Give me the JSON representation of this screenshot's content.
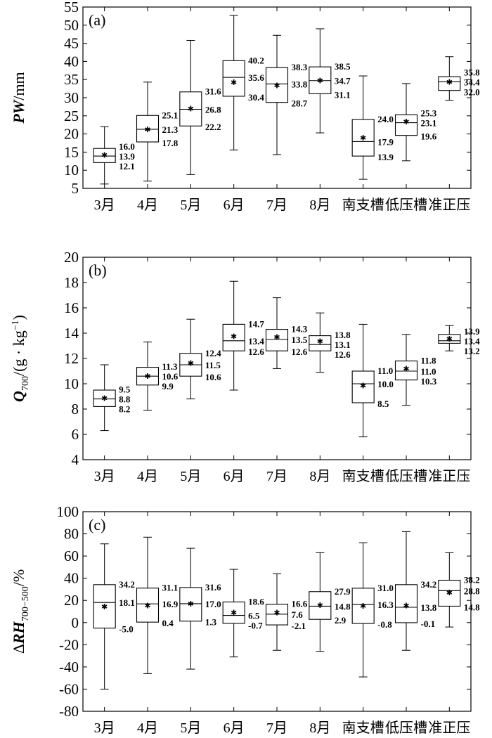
{
  "chart_data": [
    {
      "type": "box",
      "panel_label": "(a)",
      "ylabel": {
        "italic": "PW",
        "rest": "/mm"
      },
      "ylim": [
        5,
        55
      ],
      "yticks": [
        5,
        10,
        15,
        20,
        25,
        30,
        35,
        40,
        45,
        50,
        55
      ],
      "categories": [
        "3月",
        "4月",
        "5月",
        "6月",
        "7月",
        "8月",
        "南支槽",
        "低压槽",
        "准正压"
      ],
      "boxes": [
        {
          "min": 6.2,
          "q1": 12.1,
          "median": 13.9,
          "q3": 16.0,
          "max": 22.0,
          "mean": 14.2,
          "labels": [
            "16.0",
            "13.9",
            "12.1"
          ]
        },
        {
          "min": 7.0,
          "q1": 17.8,
          "median": 21.3,
          "q3": 25.1,
          "max": 34.3,
          "mean": 21.3,
          "labels": [
            "25.1",
            "21.3",
            "17.8"
          ]
        },
        {
          "min": 8.8,
          "q1": 22.2,
          "median": 26.8,
          "q3": 31.6,
          "max": 45.8,
          "mean": 27.0,
          "labels": [
            "31.6",
            "26.8",
            "22.2"
          ]
        },
        {
          "min": 15.6,
          "q1": 30.4,
          "median": 35.6,
          "q3": 40.2,
          "max": 52.7,
          "mean": 34.3,
          "labels": [
            "40.2",
            "35.6",
            "30.4"
          ]
        },
        {
          "min": 14.3,
          "q1": 28.7,
          "median": 33.8,
          "q3": 38.3,
          "max": 47.2,
          "mean": 33.4,
          "labels": [
            "38.3",
            "33.8",
            "28.7"
          ]
        },
        {
          "min": 20.3,
          "q1": 31.1,
          "median": 34.7,
          "q3": 38.5,
          "max": 49.0,
          "mean": 34.7,
          "labels": [
            "38.5",
            "34.7",
            "31.1"
          ]
        },
        {
          "min": 7.5,
          "q1": 13.9,
          "median": 17.9,
          "q3": 24.0,
          "max": 36.0,
          "mean": 19.0,
          "labels": [
            "24.0",
            "17.9",
            "13.9"
          ]
        },
        {
          "min": 12.6,
          "q1": 19.6,
          "median": 23.1,
          "q3": 25.3,
          "max": 33.9,
          "mean": 23.4,
          "labels": [
            "25.3",
            "23.1",
            "19.6"
          ]
        },
        {
          "min": 29.3,
          "q1": 32.0,
          "median": 34.4,
          "q3": 35.8,
          "max": 41.3,
          "mean": 34.4,
          "labels": [
            "35.8",
            "34.4",
            "32.0"
          ]
        }
      ]
    },
    {
      "type": "box",
      "panel_label": "(b)",
      "ylabel": {
        "italic": "Q",
        "sub": "700",
        "rest": "/(g · kg",
        "sup": "−1",
        "close": ")"
      },
      "ylim": [
        4,
        20
      ],
      "yticks": [
        4,
        6,
        8,
        10,
        12,
        14,
        16,
        18,
        20
      ],
      "categories": [
        "3月",
        "4月",
        "5月",
        "6月",
        "7月",
        "8月",
        "南支槽",
        "低压槽",
        "准正压"
      ],
      "boxes": [
        {
          "min": 6.3,
          "q1": 8.2,
          "median": 8.8,
          "q3": 9.5,
          "max": 11.5,
          "mean": 8.85,
          "labels": [
            "9.5",
            "8.8",
            "8.2"
          ]
        },
        {
          "min": 7.9,
          "q1": 9.9,
          "median": 10.6,
          "q3": 11.3,
          "max": 13.3,
          "mean": 10.6,
          "labels": [
            "11.3",
            "10.6",
            "9.9"
          ]
        },
        {
          "min": 8.8,
          "q1": 10.6,
          "median": 11.5,
          "q3": 12.4,
          "max": 15.1,
          "mean": 11.65,
          "labels": [
            "12.4",
            "11.5",
            "10.6"
          ]
        },
        {
          "min": 9.5,
          "q1": 12.6,
          "median": 13.4,
          "q3": 14.7,
          "max": 18.1,
          "mean": 13.75,
          "labels": [
            "14.7",
            "13.4",
            "12.6"
          ]
        },
        {
          "min": 11.2,
          "q1": 12.6,
          "median": 13.5,
          "q3": 14.3,
          "max": 16.8,
          "mean": 13.7,
          "labels": [
            "14.3",
            "13.5",
            "12.6"
          ]
        },
        {
          "min": 10.9,
          "q1": 12.6,
          "median": 13.1,
          "q3": 13.8,
          "max": 15.6,
          "mean": 13.35,
          "labels": [
            "13.8",
            "13.1",
            "12.6"
          ]
        },
        {
          "min": 5.8,
          "q1": 8.5,
          "median": 10.0,
          "q3": 11.0,
          "max": 14.7,
          "mean": 9.85,
          "labels": [
            "11.0",
            "10.0",
            "8.5"
          ]
        },
        {
          "min": 8.3,
          "q1": 10.3,
          "median": 11.0,
          "q3": 11.8,
          "max": 13.9,
          "mean": 11.2,
          "labels": [
            "11.8",
            "11.0",
            "10.3"
          ]
        },
        {
          "min": 12.6,
          "q1": 13.2,
          "median": 13.4,
          "q3": 13.9,
          "max": 14.6,
          "mean": 13.55,
          "labels": [
            "13.9",
            "13.4",
            "13.2"
          ]
        }
      ]
    },
    {
      "type": "box",
      "panel_label": "(c)",
      "ylabel": {
        "prefix": "Δ",
        "italic": "RH",
        "sub": "700−500",
        "rest": "/%"
      },
      "ylim": [
        -80,
        100
      ],
      "yticks": [
        -80,
        -60,
        -40,
        -20,
        0,
        20,
        40,
        60,
        80,
        100
      ],
      "categories": [
        "3月",
        "4月",
        "5月",
        "6月",
        "7月",
        "8月",
        "南支槽",
        "低压槽",
        "准正压"
      ],
      "boxes": [
        {
          "min": -60.0,
          "q1": -5.0,
          "median": 18.1,
          "q3": 34.2,
          "max": 71.0,
          "mean": 14.5,
          "labels": [
            "34.2",
            "18.1",
            "-5.0"
          ]
        },
        {
          "min": -46.0,
          "q1": 0.4,
          "median": 16.9,
          "q3": 31.1,
          "max": 77.0,
          "mean": 15.5,
          "labels": [
            "31.1",
            "16.9",
            "0.4"
          ]
        },
        {
          "min": -42.0,
          "q1": 1.3,
          "median": 17.0,
          "q3": 31.6,
          "max": 67.0,
          "mean": 17.0,
          "labels": [
            "31.6",
            "17.0",
            "1.3"
          ]
        },
        {
          "min": -31.0,
          "q1": -0.7,
          "median": 6.5,
          "q3": 18.6,
          "max": 48.0,
          "mean": 9.0,
          "labels": [
            "18.6",
            "6.5",
            "-0.7"
          ]
        },
        {
          "min": -25.0,
          "q1": -2.1,
          "median": 7.6,
          "q3": 16.6,
          "max": 44.0,
          "mean": 9.0,
          "labels": [
            "16.6",
            "7.6",
            "-2.1"
          ]
        },
        {
          "min": -26.0,
          "q1": 2.9,
          "median": 14.8,
          "q3": 27.9,
          "max": 63.0,
          "mean": 15.8,
          "labels": [
            "27.9",
            "14.8",
            "2.9"
          ]
        },
        {
          "min": -49.0,
          "q1": -0.8,
          "median": 16.3,
          "q3": 31.0,
          "max": 72.0,
          "mean": 15.0,
          "labels": [
            "31.0",
            "16.3",
            "-0.8"
          ]
        },
        {
          "min": -25.0,
          "q1": -0.1,
          "median": 13.8,
          "q3": 34.2,
          "max": 82.0,
          "mean": 15.5,
          "labels": [
            "34.2",
            "13.8",
            "-0.1"
          ]
        },
        {
          "min": -4.0,
          "q1": 14.8,
          "median": 28.8,
          "q3": 38.2,
          "max": 63.0,
          "mean": 27.0,
          "labels": [
            "38.2",
            "28.8",
            "14.8"
          ]
        }
      ]
    }
  ]
}
